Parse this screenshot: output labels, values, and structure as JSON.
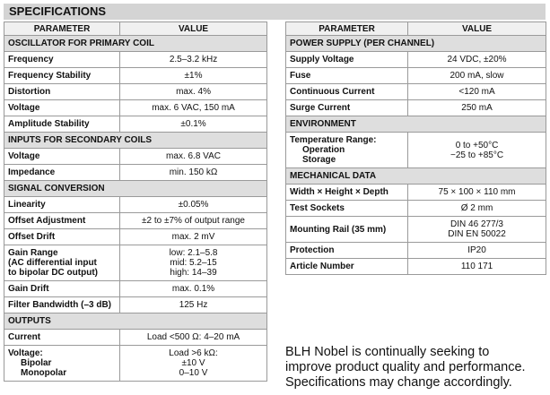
{
  "title": "SPECIFICATIONS",
  "tables": [
    {
      "header": [
        "PARAMETER",
        "VALUE"
      ],
      "sections": [
        {
          "title": "OSCILLATOR FOR PRIMARY COIL",
          "rows": [
            {
              "parameter": [
                "Frequency"
              ],
              "value": [
                "2.5–3.2 kHz"
              ]
            },
            {
              "parameter": [
                "Frequency Stability"
              ],
              "value": [
                "±1%"
              ]
            },
            {
              "parameter": [
                "Distortion"
              ],
              "value": [
                "max. 4%"
              ]
            },
            {
              "parameter": [
                "Voltage"
              ],
              "value": [
                "max. 6 VAC, 150 mA"
              ]
            },
            {
              "parameter": [
                "Amplitude Stability"
              ],
              "value": [
                "±0.1%"
              ]
            }
          ]
        },
        {
          "title": "INPUTS FOR SECONDARY COILS",
          "rows": [
            {
              "parameter": [
                "Voltage"
              ],
              "value": [
                "max. 6.8 VAC"
              ]
            },
            {
              "parameter": [
                "Impedance"
              ],
              "value": [
                "min. 150 kΩ"
              ]
            }
          ]
        },
        {
          "title": "SIGNAL CONVERSION",
          "rows": [
            {
              "parameter": [
                "Linearity"
              ],
              "value": [
                "±0.05%"
              ]
            },
            {
              "parameter": [
                "Offset Adjustment"
              ],
              "value": [
                "±2 to ±7% of output range"
              ]
            },
            {
              "parameter": [
                "Offset Drift"
              ],
              "value": [
                "max. 2 mV"
              ]
            },
            {
              "parameter": [
                "Gain Range",
                "(AC differential input",
                "to bipolar DC output)"
              ],
              "value": [
                "low: 2.1–5.8",
                "mid: 5.2–15",
                "high: 14–39"
              ]
            },
            {
              "parameter": [
                "Gain Drift"
              ],
              "value": [
                "max. 0.1%"
              ]
            },
            {
              "parameter": [
                "Filter Bandwidth (–3 dB)"
              ],
              "value": [
                "125 Hz"
              ]
            }
          ]
        },
        {
          "title": "OUTPUTS",
          "rows": [
            {
              "parameter": [
                "Current"
              ],
              "value": [
                "Load <500 Ω: 4–20 mA"
              ]
            },
            {
              "parameter": [
                "Voltage:"
              ],
              "sub": [
                "Bipolar",
                "Monopolar"
              ],
              "value": [
                "Load >6 kΩ:",
                "±10 V",
                "0–10 V"
              ]
            }
          ]
        }
      ]
    },
    {
      "header": [
        "PARAMETER",
        "VALUE"
      ],
      "sections": [
        {
          "title": "POWER SUPPLY (PER CHANNEL)",
          "rows": [
            {
              "parameter": [
                "Supply Voltage"
              ],
              "value": [
                "24 VDC, ±20%"
              ]
            },
            {
              "parameter": [
                "Fuse"
              ],
              "value": [
                "200 mA, slow"
              ]
            },
            {
              "parameter": [
                "Continuous Current"
              ],
              "value": [
                "<120 mA"
              ]
            },
            {
              "parameter": [
                "Surge Current"
              ],
              "value": [
                "250 mA"
              ]
            }
          ]
        },
        {
          "title": "ENVIRONMENT",
          "rows": [
            {
              "parameter": [
                "Temperature Range:"
              ],
              "sub": [
                "Operation",
                "Storage"
              ],
              "value": [
                "0 to +50°C",
                "−25 to +85°C"
              ]
            }
          ]
        },
        {
          "title": "MECHANICAL DATA",
          "rows": [
            {
              "parameter": [
                "Width × Height × Depth"
              ],
              "value": [
                "75 × 100 × 110 mm"
              ]
            },
            {
              "parameter": [
                "Test Sockets"
              ],
              "value": [
                "Ø 2 mm"
              ]
            },
            {
              "parameter": [
                "Mounting Rail (35 mm)"
              ],
              "value": [
                "DIN 46 277/3",
                "DIN EN 50022"
              ]
            },
            {
              "parameter": [
                "Protection"
              ],
              "value": [
                "IP20"
              ]
            },
            {
              "parameter": [
                "Article Number"
              ],
              "value": [
                "110 171"
              ]
            }
          ]
        }
      ]
    }
  ],
  "note": [
    "BLH Nobel is continually seeking to",
    "improve product quality and performance.",
    "Specifications may change accordingly."
  ]
}
